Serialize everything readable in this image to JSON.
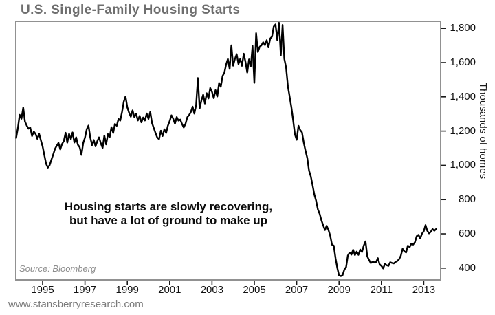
{
  "page": {
    "title": "U.S. Single-Family Housing Starts",
    "source_note": "Source: Bloomberg",
    "website": "www.stansberryresearch.com"
  },
  "chart_data": {
    "type": "line",
    "title": "U.S. Single-Family Housing Starts",
    "xlabel": "",
    "ylabel": "Thousands of homes",
    "line_color": "#000000",
    "grid": false,
    "legend": "none",
    "ylim": [
      400,
      1800
    ],
    "yticks": [
      400,
      600,
      800,
      1000,
      1200,
      1400,
      1600,
      1800
    ],
    "ytick_labels": [
      "400",
      "600",
      "800",
      "1,000",
      "1,200",
      "1,400",
      "1,600",
      "1,800"
    ],
    "xticks": [
      1995,
      1997,
      1999,
      2001,
      2003,
      2005,
      2007,
      2009,
      2011,
      2013
    ],
    "xtick_labels": [
      "1995",
      "1997",
      "1999",
      "2001",
      "2003",
      "2005",
      "2007",
      "2009",
      "2011",
      "2013"
    ],
    "annotation": {
      "line1": "Housing starts are slowly recovering,",
      "line2": "but have a lot of ground to make up"
    },
    "series": [
      {
        "name": "U.S. single-family housing starts (thousands of homes, monthly)",
        "start_year": 1993,
        "start_month": 10,
        "frequency": "monthly",
        "values": [
          1160,
          1220,
          1295,
          1272,
          1337,
          1256,
          1232,
          1214,
          1220,
          1171,
          1197,
          1184,
          1155,
          1184,
          1147,
          1110,
          1058,
          1009,
          987,
          1002,
          1033,
          1063,
          1096,
          1114,
          1131,
          1093,
          1124,
          1141,
          1190,
          1132,
          1184,
          1153,
          1192,
          1133,
          1164,
          1120,
          1106,
          1061,
          1129,
          1162,
          1211,
          1232,
          1164,
          1118,
          1148,
          1111,
          1142,
          1163,
          1128,
          1102,
          1174,
          1122,
          1182,
          1164,
          1223,
          1189,
          1242,
          1231,
          1271,
          1261,
          1311,
          1372,
          1402,
          1339,
          1307,
          1284,
          1321,
          1281,
          1302,
          1262,
          1289,
          1251,
          1279,
          1262,
          1303,
          1271,
          1312,
          1248,
          1218,
          1188,
          1162,
          1153,
          1202,
          1171,
          1211,
          1189,
          1231,
          1258,
          1292,
          1273,
          1243,
          1282,
          1261,
          1267,
          1242,
          1221,
          1243,
          1281,
          1293,
          1311,
          1343,
          1302,
          1351,
          1510,
          1332,
          1379,
          1412,
          1361,
          1421,
          1391,
          1452,
          1429,
          1392,
          1439,
          1402,
          1481,
          1459,
          1522,
          1541,
          1588,
          1621,
          1563,
          1701,
          1582,
          1622,
          1649,
          1591,
          1622,
          1581,
          1652,
          1602,
          1542,
          1619,
          1579,
          1698,
          1482,
          1772,
          1662,
          1692,
          1701,
          1719,
          1702,
          1731,
          1689,
          1741,
          1752,
          1811,
          1823,
          1731,
          1832,
          1642,
          1820,
          1622,
          1571,
          1462,
          1402,
          1339,
          1262,
          1181,
          1149,
          1231,
          1206,
          1193,
          1132,
          1085,
          1043,
          968,
          936,
          884,
          829,
          794,
          743,
          717,
          680,
          650,
          622,
          647,
          623,
          589,
          537,
          531,
          458,
          402,
          357,
          353,
          358,
          391,
          406,
          473,
          490,
          479,
          507,
          476,
          496,
          477,
          508,
          494,
          531,
          556,
          468,
          448,
          429,
          437,
          434,
          436,
          458,
          422,
          413,
          398,
          424,
          417,
          413,
          434,
          430,
          427,
          436,
          441,
          452,
          471,
          512,
          498,
          491,
          531,
          522,
          543,
          537,
          551,
          586,
          594,
          573,
          601,
          615,
          651,
          618,
          603,
          612,
          628,
          618,
          628
        ]
      }
    ]
  }
}
